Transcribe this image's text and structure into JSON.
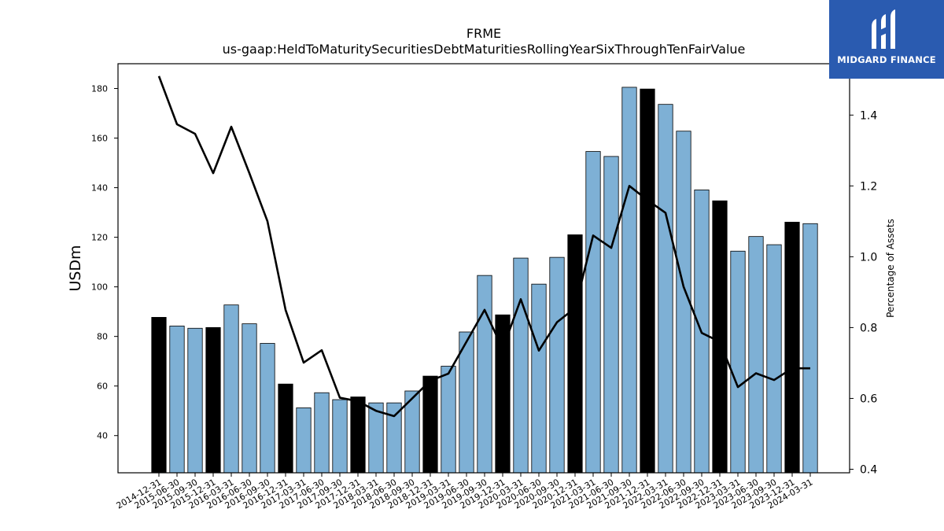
{
  "chart_data": {
    "type": "bar",
    "title": "FRME",
    "subtitle": "us-gaap:HeldToMaturitySecuritiesDebtMaturitiesRollingYearSixThroughTenFairValue",
    "ylabel": "USDm",
    "y2label": "Percentage of Assets",
    "ylim": [
      25,
      190
    ],
    "y2lim": [
      0.39,
      1.545
    ],
    "yticks": [
      40,
      60,
      80,
      100,
      120,
      140,
      160,
      180
    ],
    "y2ticks": [
      0.4,
      0.6,
      0.8,
      1.0,
      1.2,
      1.4
    ],
    "grid": false,
    "categories": [
      "2014-12-31",
      "2015-06-30",
      "2015-09-30",
      "2015-12-31",
      "2016-03-31",
      "2016-06-30",
      "2016-09-30",
      "2016-12-31",
      "2017-03-31",
      "2017-06-30",
      "2017-09-30",
      "2017-12-31",
      "2018-03-31",
      "2018-06-30",
      "2018-09-30",
      "2018-12-31",
      "2019-03-31",
      "2019-06-30",
      "2019-09-30",
      "2019-12-31",
      "2020-03-31",
      "2020-06-30",
      "2020-09-30",
      "2020-12-31",
      "2021-03-31",
      "2021-06-30",
      "2021-09-30",
      "2021-12-31",
      "2022-03-31",
      "2022-06-30",
      "2022-09-30",
      "2022-12-31",
      "2023-03-31",
      "2023-06-30",
      "2023-09-30",
      "2023-12-31",
      "2024-03-31"
    ],
    "series": [
      {
        "type": "bar",
        "values": [
          87.7,
          84.2,
          83.3,
          83.6,
          92.7,
          85.1,
          77.2,
          60.8,
          51.2,
          57.3,
          54.5,
          55.6,
          53.2,
          53.2,
          58.0,
          64.0,
          68.0,
          81.8,
          104.6,
          88.7,
          111.6,
          101.1,
          111.9,
          121.0,
          154.6,
          152.6,
          180.5,
          179.8,
          173.6,
          162.8,
          139.1,
          134.7,
          114.4,
          120.3,
          117.0,
          126.1,
          125.5
        ],
        "colors": [
          "#000000",
          "#7eb0d5",
          "#7eb0d5",
          "#000000",
          "#7eb0d5",
          "#7eb0d5",
          "#7eb0d5",
          "#000000",
          "#7eb0d5",
          "#7eb0d5",
          "#7eb0d5",
          "#000000",
          "#7eb0d5",
          "#7eb0d5",
          "#7eb0d5",
          "#000000",
          "#7eb0d5",
          "#7eb0d5",
          "#7eb0d5",
          "#000000",
          "#7eb0d5",
          "#7eb0d5",
          "#7eb0d5",
          "#000000",
          "#7eb0d5",
          "#7eb0d5",
          "#7eb0d5",
          "#000000",
          "#7eb0d5",
          "#7eb0d5",
          "#7eb0d5",
          "#000000",
          "#7eb0d5",
          "#7eb0d5",
          "#7eb0d5",
          "#000000",
          "#7eb0d5"
        ]
      },
      {
        "type": "line",
        "axis": "right",
        "color": "#000000",
        "values": [
          1.51,
          1.374,
          1.347,
          1.236,
          1.367,
          1.236,
          1.1,
          0.85,
          0.701,
          0.736,
          0.602,
          0.592,
          0.565,
          0.55,
          0.6,
          0.65,
          0.67,
          0.76,
          0.85,
          0.74,
          0.88,
          0.735,
          0.815,
          0.855,
          1.06,
          1.025,
          1.2,
          1.16,
          1.124,
          0.915,
          0.785,
          0.76,
          0.632,
          0.671,
          0.652,
          0.685,
          0.685
        ]
      }
    ]
  },
  "logo": {
    "text": "MIDGARD FINANCE",
    "background": "#2a5bb0"
  }
}
